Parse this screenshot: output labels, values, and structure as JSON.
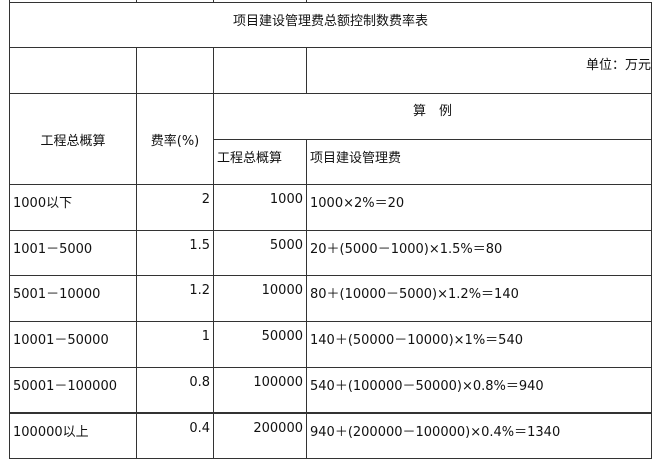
{
  "title": "项目建设管理费总额控制数费率表",
  "unit": "单位：万元",
  "headers": {
    "total_estimate": "工程总概算",
    "rate": "费率(%)",
    "example": "算　例",
    "example_total": "工程总概算",
    "example_fee": "项目建设管理费"
  },
  "rows": [
    {
      "range": "1000以下",
      "rate": "2",
      "total": "1000",
      "calc": "1000×2%＝20"
    },
    {
      "range": "1001－5000",
      "rate": "1.5",
      "total": "5000",
      "calc": "20＋(5000－1000)×1.5%＝80"
    },
    {
      "range": "5001－10000",
      "rate": "1.2",
      "total": "10000",
      "calc": "80＋(10000－5000)×1.2%＝140"
    },
    {
      "range": "10001－50000",
      "rate": "1",
      "total": "50000",
      "calc": "140＋(50000－10000)×1%＝540"
    },
    {
      "range": "50001－100000",
      "rate": "0.8",
      "total": "100000",
      "calc": "540＋(100000－50000)×0.8%＝940"
    },
    {
      "range": "100000以上",
      "rate": "0.4",
      "total": "200000",
      "calc": "940＋(200000－100000)×0.4%＝1340"
    }
  ]
}
